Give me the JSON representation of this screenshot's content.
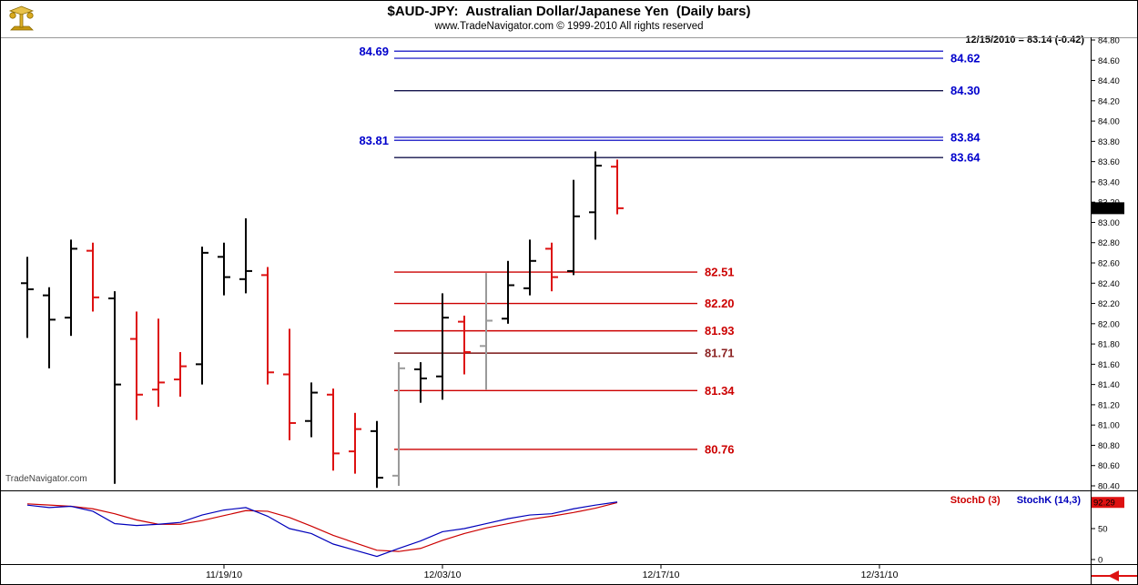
{
  "branding": {
    "copyright": "www.TradeNavigator.com © 1999-2010 All rights reserved",
    "watermark": "TradeNavigator.com"
  },
  "chart_data": {
    "type": "bar",
    "subtype": "ohlc-daily",
    "symbol": "$AUD-JPY",
    "title": "$AUD-JPY:  Australian Dollar/Japanese Yen  (Daily bars)",
    "last_quote": {
      "text": "12/15/2010 = 83.14 (-0.42)",
      "date": "12/15/2010",
      "price": 83.14,
      "change": -0.42,
      "badge_label": "83.14"
    },
    "price_axis": {
      "min": 80.4,
      "max": 84.8,
      "step": 0.2,
      "tick_labels": [
        "84.80",
        "84.60",
        "84.40",
        "84.20",
        "84.00",
        "83.80",
        "83.60",
        "83.40",
        "83.20",
        "83.00",
        "82.80",
        "82.60",
        "82.40",
        "82.20",
        "82.00",
        "81.80",
        "81.60",
        "81.40",
        "81.20",
        "81.00",
        "80.80",
        "80.60",
        "80.40"
      ]
    },
    "x_axis": {
      "labels": [
        {
          "text": "11/19/10",
          "bar_index": 9
        },
        {
          "text": "12/03/10",
          "bar_index": 19
        },
        {
          "text": "12/17/10",
          "bar_index": 29
        },
        {
          "text": "12/31/10",
          "bar_index": 39
        }
      ]
    },
    "bar_colors": {
      "black": "#000000",
      "red": "#dd1111",
      "gray": "#9a9a9a"
    },
    "bars": [
      {
        "date": "11/08/10",
        "o": 82.4,
        "h": 82.66,
        "l": 81.86,
        "c": 82.34,
        "color": "black"
      },
      {
        "date": "11/09/10",
        "o": 82.28,
        "h": 82.36,
        "l": 81.56,
        "c": 82.04,
        "color": "black"
      },
      {
        "date": "11/10/10",
        "o": 82.06,
        "h": 82.83,
        "l": 81.88,
        "c": 82.74,
        "color": "black"
      },
      {
        "date": "11/11/10",
        "o": 82.72,
        "h": 82.8,
        "l": 82.12,
        "c": 82.26,
        "color": "red"
      },
      {
        "date": "11/12/10",
        "o": 82.25,
        "h": 82.32,
        "l": 80.42,
        "c": 81.4,
        "color": "black"
      },
      {
        "date": "11/15/10",
        "o": 81.85,
        "h": 82.12,
        "l": 81.05,
        "c": 81.3,
        "color": "red"
      },
      {
        "date": "11/16/10",
        "o": 81.35,
        "h": 82.05,
        "l": 81.18,
        "c": 81.42,
        "color": "red"
      },
      {
        "date": "11/17/10",
        "o": 81.45,
        "h": 81.72,
        "l": 81.28,
        "c": 81.58,
        "color": "red"
      },
      {
        "date": "11/18/10",
        "o": 81.6,
        "h": 82.76,
        "l": 81.4,
        "c": 82.7,
        "color": "black"
      },
      {
        "date": "11/19/10",
        "o": 82.66,
        "h": 82.8,
        "l": 82.28,
        "c": 82.46,
        "color": "black"
      },
      {
        "date": "11/22/10",
        "o": 82.44,
        "h": 83.04,
        "l": 82.3,
        "c": 82.52,
        "color": "black"
      },
      {
        "date": "11/23/10",
        "o": 82.48,
        "h": 82.56,
        "l": 81.4,
        "c": 81.52,
        "color": "red"
      },
      {
        "date": "11/24/10",
        "o": 81.5,
        "h": 81.95,
        "l": 80.85,
        "c": 81.02,
        "color": "red"
      },
      {
        "date": "11/25/10",
        "o": 81.04,
        "h": 81.42,
        "l": 80.88,
        "c": 81.32,
        "color": "black"
      },
      {
        "date": "11/26/10",
        "o": 81.3,
        "h": 81.36,
        "l": 80.55,
        "c": 80.72,
        "color": "red"
      },
      {
        "date": "11/29/10",
        "o": 80.74,
        "h": 81.12,
        "l": 80.52,
        "c": 80.96,
        "color": "red"
      },
      {
        "date": "11/30/10",
        "o": 80.94,
        "h": 81.04,
        "l": 80.38,
        "c": 80.48,
        "color": "black"
      },
      {
        "date": "12/01/10",
        "o": 80.5,
        "h": 81.62,
        "l": 80.4,
        "c": 81.56,
        "color": "gray"
      },
      {
        "date": "12/02/10",
        "o": 81.55,
        "h": 81.62,
        "l": 81.22,
        "c": 81.46,
        "color": "black"
      },
      {
        "date": "12/03/10",
        "o": 81.48,
        "h": 82.3,
        "l": 81.25,
        "c": 82.06,
        "color": "black"
      },
      {
        "date": "12/06/10",
        "o": 82.02,
        "h": 82.08,
        "l": 81.5,
        "c": 81.72,
        "color": "red"
      },
      {
        "date": "12/07/10",
        "o": 81.78,
        "h": 82.5,
        "l": 81.35,
        "c": 82.03,
        "color": "gray"
      },
      {
        "date": "12/08/10",
        "o": 82.05,
        "h": 82.62,
        "l": 82.0,
        "c": 82.38,
        "color": "black"
      },
      {
        "date": "12/09/10",
        "o": 82.35,
        "h": 82.83,
        "l": 82.28,
        "c": 82.62,
        "color": "black"
      },
      {
        "date": "12/10/10",
        "o": 82.74,
        "h": 82.8,
        "l": 82.32,
        "c": 82.46,
        "color": "red"
      },
      {
        "date": "12/13/10",
        "o": 82.52,
        "h": 83.42,
        "l": 82.48,
        "c": 83.06,
        "color": "black"
      },
      {
        "date": "12/14/10",
        "o": 83.1,
        "h": 83.7,
        "l": 82.83,
        "c": 83.56,
        "color": "black"
      },
      {
        "date": "12/15/10",
        "o": 83.55,
        "h": 83.62,
        "l": 83.08,
        "c": 83.14,
        "color": "red"
      }
    ],
    "levels": [
      {
        "price": 84.69,
        "label": "84.69",
        "label_side": "left",
        "extent": "long",
        "line_color": "#3333cc",
        "label_color": "#0000cc"
      },
      {
        "price": 84.62,
        "label": "84.62",
        "label_side": "right",
        "extent": "long",
        "line_color": "#3333cc",
        "label_color": "#0000cc"
      },
      {
        "price": 84.3,
        "label": "84.30",
        "label_side": "right",
        "extent": "long",
        "line_color": "#15154d",
        "label_color": "#0000cc"
      },
      {
        "price": 83.84,
        "label": "83.84",
        "label_side": "right",
        "extent": "long",
        "line_color": "#3333cc",
        "label_color": "#0000cc"
      },
      {
        "price": 83.81,
        "label": "83.81",
        "label_side": "left",
        "extent": "long",
        "line_color": "#3333cc",
        "label_color": "#0000cc"
      },
      {
        "price": 83.64,
        "label": "83.64",
        "label_side": "right",
        "extent": "long",
        "line_color": "#15154d",
        "label_color": "#0000cc"
      },
      {
        "price": 82.51,
        "label": "82.51",
        "label_side": "right",
        "extent": "short",
        "line_color": "#cc0000",
        "label_color": "#cc0000"
      },
      {
        "price": 82.2,
        "label": "82.20",
        "label_side": "right",
        "extent": "short",
        "line_color": "#cc0000",
        "label_color": "#cc0000"
      },
      {
        "price": 81.93,
        "label": "81.93",
        "label_side": "right",
        "extent": "short",
        "line_color": "#cc0000",
        "label_color": "#cc0000"
      },
      {
        "price": 81.71,
        "label": "81.71",
        "label_side": "right",
        "extent": "short",
        "line_color": "#7a1515",
        "label_color": "#8b2222"
      },
      {
        "price": 81.34,
        "label": "81.34",
        "label_side": "right",
        "extent": "short",
        "line_color": "#cc0000",
        "label_color": "#cc0000"
      },
      {
        "price": 80.76,
        "label": "80.76",
        "label_side": "right",
        "extent": "short",
        "line_color": "#cc0000",
        "label_color": "#cc0000"
      }
    ],
    "stochastic": {
      "legend": [
        {
          "label": "StochD (3)",
          "color": "#cc0000"
        },
        {
          "label": "StochK (14,3)",
          "color": "#0000bb"
        }
      ],
      "scale_labels": [
        {
          "text": "50",
          "value": 50
        },
        {
          "text": "0",
          "value": 0
        }
      ],
      "value_badge": {
        "text": "92.29",
        "value": 92.29,
        "color": "#dd1111"
      },
      "k": [
        88,
        84,
        86,
        78,
        58,
        55,
        57,
        60,
        72,
        80,
        84,
        70,
        50,
        42,
        25,
        15,
        5,
        18,
        30,
        45,
        50,
        58,
        66,
        72,
        74,
        82,
        88,
        93
      ],
      "d": [
        90,
        88,
        86,
        82,
        74,
        64,
        57,
        57,
        63,
        71,
        79,
        78,
        68,
        54,
        39,
        27,
        15,
        13,
        18,
        31,
        42,
        51,
        58,
        65,
        70,
        76,
        83,
        92
      ]
    }
  }
}
